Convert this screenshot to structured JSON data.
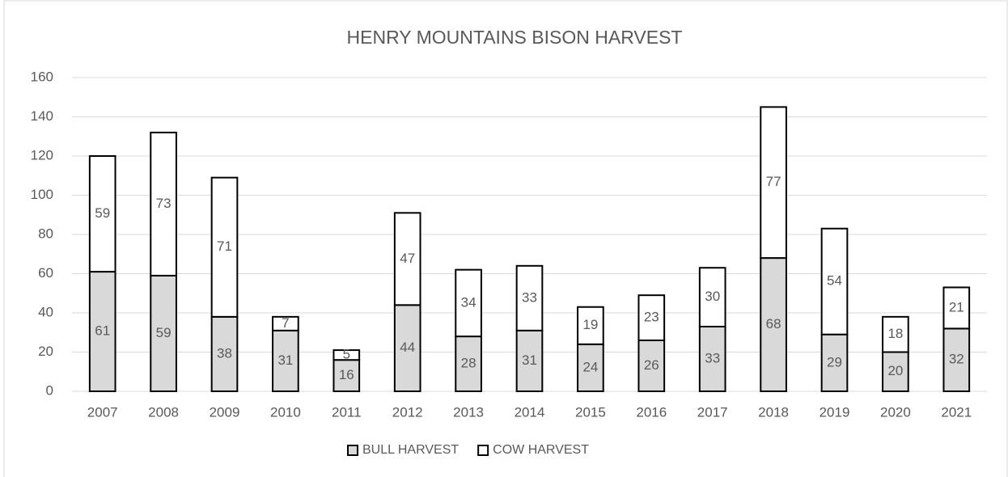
{
  "chart_data": {
    "type": "stacked_bar",
    "title": "HENRY MOUNTAINS BISON HARVEST",
    "categories": [
      "2007",
      "2008",
      "2009",
      "2010",
      "2011",
      "2012",
      "2013",
      "2014",
      "2015",
      "2016",
      "2017",
      "2018",
      "2019",
      "2020",
      "2021"
    ],
    "series": [
      {
        "name": "BULL HARVEST",
        "color": "#d9d9d9",
        "values": [
          61,
          59,
          38,
          31,
          16,
          44,
          28,
          31,
          24,
          26,
          33,
          68,
          29,
          20,
          32
        ]
      },
      {
        "name": "COW HARVEST",
        "color": "#ffffff",
        "values": [
          59,
          73,
          71,
          7,
          5,
          47,
          34,
          33,
          19,
          23,
          30,
          77,
          54,
          18,
          21
        ]
      }
    ],
    "ylim": [
      0,
      160
    ],
    "yticks": [
      0,
      20,
      40,
      60,
      80,
      100,
      120,
      140,
      160
    ],
    "grid": true,
    "legend": "bottom"
  }
}
